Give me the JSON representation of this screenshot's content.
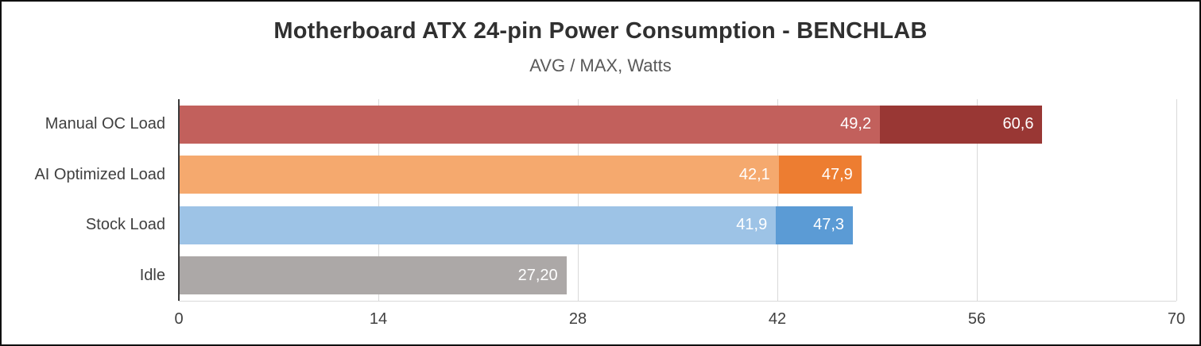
{
  "chart_data": {
    "type": "bar",
    "orientation": "horizontal",
    "title": "Motherboard ATX 24-pin Power Consumption - BENCHLAB",
    "subtitle": "AVG / MAX, Watts",
    "xlabel": "",
    "ylabel": "",
    "xlim": [
      0,
      70
    ],
    "x_ticks": [
      "0",
      "14",
      "28",
      "42",
      "56",
      "70"
    ],
    "grid": true,
    "legend": "none",
    "value_label_color": "#ffffff",
    "gridline_color": "#d9d9d9",
    "axis_line_color": "#3a3a3a",
    "categories": [
      "Manual OC Load",
      "AI Optimized Load",
      "Stock Load",
      "Idle"
    ],
    "series": [
      {
        "name": "AVG",
        "values": [
          49.2,
          42.1,
          41.9,
          27.2
        ]
      },
      {
        "name": "MAX",
        "values": [
          60.6,
          47.9,
          47.3,
          null
        ]
      }
    ],
    "bars": [
      {
        "category": "Manual OC Load",
        "segments": [
          {
            "series": "AVG",
            "value": 49.2,
            "label": "49,2",
            "color": "#c2605c"
          },
          {
            "series": "MAX",
            "value": 60.6,
            "label": "60,6",
            "color": "#993734"
          }
        ]
      },
      {
        "category": "AI Optimized Load",
        "segments": [
          {
            "series": "AVG",
            "value": 42.1,
            "label": "42,1",
            "color": "#f5a96e"
          },
          {
            "series": "MAX",
            "value": 47.9,
            "label": "47,9",
            "color": "#ed7d31"
          }
        ]
      },
      {
        "category": "Stock Load",
        "segments": [
          {
            "series": "AVG",
            "value": 41.9,
            "label": "41,9",
            "color": "#9dc3e6"
          },
          {
            "series": "MAX",
            "value": 47.3,
            "label": "47,3",
            "color": "#5b9bd5"
          }
        ]
      },
      {
        "category": "Idle",
        "segments": [
          {
            "series": "AVG",
            "value": 27.2,
            "label": "27,20",
            "color": "#aca8a7"
          }
        ]
      }
    ]
  }
}
